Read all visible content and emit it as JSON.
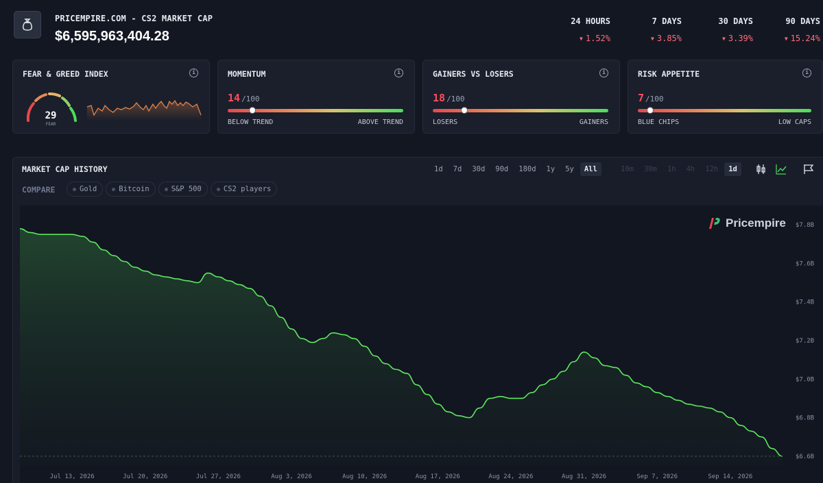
{
  "header": {
    "subtitle": "PRICEMPIRE.COM - CS2 MARKET CAP",
    "value": "$6,595,963,404.28",
    "logo_icon": "money-bag-icon",
    "periods": [
      {
        "label": "24 HOURS",
        "change": "1.52%"
      },
      {
        "label": "7 DAYS",
        "change": "3.85%"
      },
      {
        "label": "30 DAYS",
        "change": "3.39%"
      },
      {
        "label": "90 DAYS",
        "change": "15.24%"
      }
    ],
    "down_color": "#ff6b7a"
  },
  "cards": {
    "fear_greed": {
      "title": "FEAR & GREED INDEX",
      "value": "29",
      "label": "FEAR"
    },
    "momentum": {
      "title": "MOMENTUM",
      "score": "14",
      "max": "/100",
      "level": 0.14,
      "left": "BELOW TREND",
      "right": "ABOVE TREND"
    },
    "gainers": {
      "title": "GAINERS VS LOSERS",
      "score": "18",
      "max": "/100",
      "level": 0.18,
      "left": "LOSERS",
      "right": "GAINERS"
    },
    "risk": {
      "title": "RISK APPETITE",
      "score": "7",
      "max": "/100",
      "level": 0.07,
      "left": "BLUE CHIPS",
      "right": "LOW CAPS"
    }
  },
  "history": {
    "title": "MARKET CAP HISTORY",
    "compare_label": "COMPARE",
    "compare": [
      "Gold",
      "Bitcoin",
      "S&P 500",
      "CS2 players"
    ],
    "ranges": [
      "1d",
      "7d",
      "30d",
      "90d",
      "180d",
      "1y",
      "5y",
      "All"
    ],
    "active_range": "All",
    "intervals": [
      "10m",
      "30m",
      "1h",
      "4h",
      "12h",
      "1d"
    ],
    "active_interval": "1d",
    "watermark": "Pricempire",
    "line_color": "#5ee85e"
  },
  "chart_data": {
    "type": "area",
    "y_unit": "USD billions",
    "ylim": [
      6.55,
      7.9
    ],
    "yticks": [
      "$7.8B",
      "$7.6B",
      "$7.4B",
      "$7.2B",
      "$7.0B",
      "$6.8B",
      "$6.6B"
    ],
    "ytick_values": [
      7.8,
      7.6,
      7.4,
      7.2,
      7.0,
      6.8,
      6.6
    ],
    "xticks": [
      "Jul 13, 2026",
      "Jul 20, 2026",
      "Jul 27, 2026",
      "Aug 3, 2026",
      "Aug 10, 2026",
      "Aug 17, 2026",
      "Aug 24, 2026",
      "Aug 31, 2026",
      "Sep 7, 2026",
      "Sep 14, 2026"
    ],
    "xtick_days": [
      5,
      12,
      19,
      26,
      33,
      40,
      47,
      54,
      61,
      68
    ],
    "series": [
      {
        "x": [
          0,
          1,
          2,
          3,
          4,
          5,
          6,
          7,
          8,
          9,
          10,
          11,
          12,
          13,
          14,
          15,
          16,
          17,
          18,
          19,
          20,
          21,
          22,
          23,
          24,
          25,
          26,
          27,
          28,
          29,
          30,
          31,
          32,
          33,
          34,
          35,
          36,
          37,
          38,
          39,
          40,
          41,
          42,
          43,
          44,
          45,
          46,
          47,
          48,
          49,
          50,
          51,
          52,
          53,
          54,
          55,
          56,
          57,
          58,
          59,
          60,
          61,
          62,
          63,
          64,
          65,
          66,
          67,
          68,
          69,
          70,
          71,
          72,
          73
        ],
        "values": [
          7.78,
          7.76,
          7.75,
          7.75,
          7.75,
          7.75,
          7.74,
          7.71,
          7.67,
          7.64,
          7.61,
          7.58,
          7.56,
          7.54,
          7.53,
          7.52,
          7.51,
          7.5,
          7.55,
          7.53,
          7.51,
          7.49,
          7.47,
          7.43,
          7.38,
          7.32,
          7.26,
          7.21,
          7.19,
          7.21,
          7.24,
          7.23,
          7.21,
          7.17,
          7.12,
          7.08,
          7.05,
          7.03,
          6.97,
          6.92,
          6.87,
          6.83,
          6.81,
          6.8,
          6.85,
          6.9,
          6.91,
          6.9,
          6.9,
          6.93,
          6.97,
          7.0,
          7.04,
          7.09,
          7.14,
          7.11,
          7.07,
          7.06,
          7.02,
          6.98,
          6.96,
          6.93,
          6.91,
          6.89,
          6.87,
          6.86,
          6.85,
          6.83,
          6.8,
          6.76,
          6.73,
          6.7,
          6.64,
          6.6
        ]
      }
    ],
    "baseline": 6.6,
    "grid": false
  }
}
